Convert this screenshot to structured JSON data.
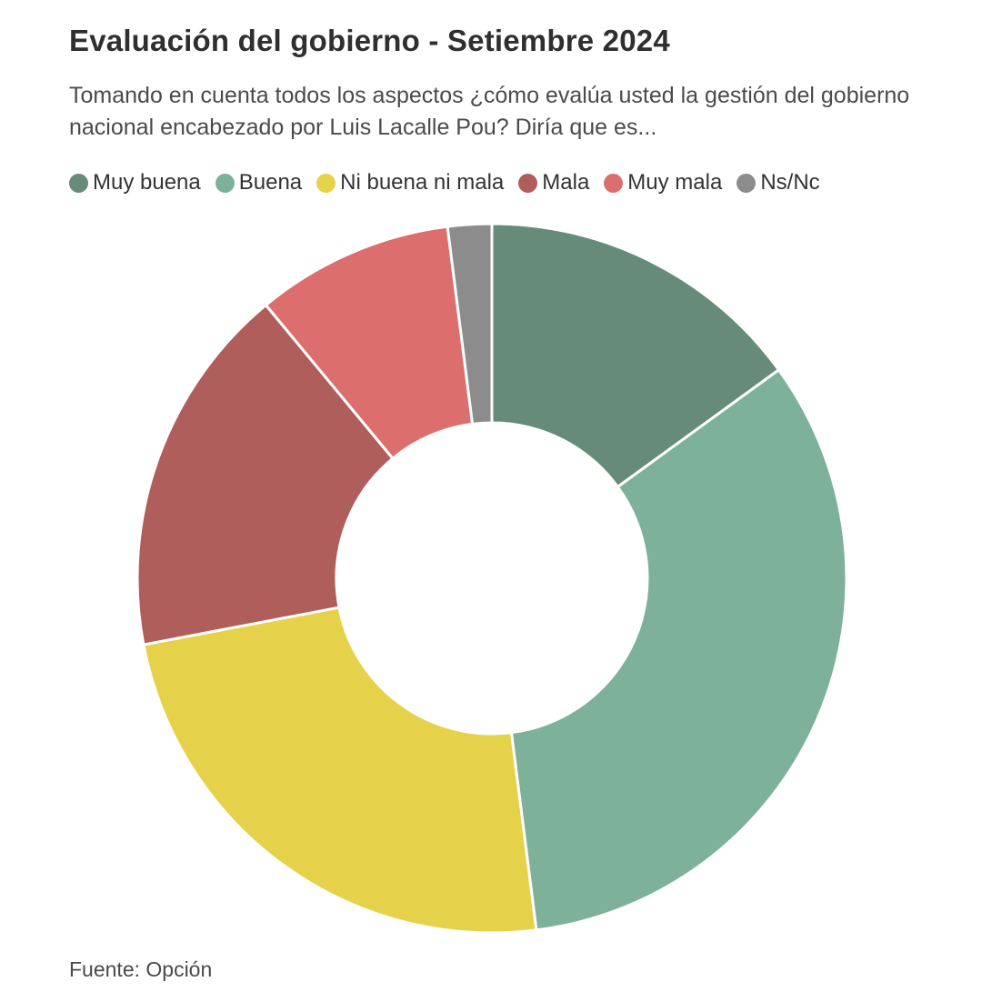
{
  "title": "Evaluación del gobierno - Setiembre 2024",
  "subtitle": "Tomando en cuenta todos los aspectos ¿cómo evalúa usted la gestión del gobierno nacional encabezado por Luis Lacalle Pou? Diría que es...",
  "source": "Fuente: Opción",
  "legend": [
    {
      "label": "Muy buena",
      "color": "#668b79"
    },
    {
      "label": "Buena",
      "color": "#7db19a"
    },
    {
      "label": "Ni buena ni mala",
      "color": "#e6d24a"
    },
    {
      "label": "Mala",
      "color": "#b05e5c"
    },
    {
      "label": "Muy mala",
      "color": "#dc6f6e"
    },
    {
      "label": "Ns/Nc",
      "color": "#8c8c8c"
    }
  ],
  "chart_data": {
    "type": "pie",
    "donut": true,
    "title": "Evaluación del gobierno - Setiembre 2024",
    "categories": [
      "Muy buena",
      "Buena",
      "Ni buena ni mala",
      "Mala",
      "Muy mala",
      "Ns/Nc"
    ],
    "values": [
      15,
      33,
      24,
      17,
      9,
      2
    ],
    "colors": [
      "#668b79",
      "#7db19a",
      "#e6d24a",
      "#b05e5c",
      "#dc6f6e",
      "#8c8c8c"
    ],
    "legend_position": "top-left"
  }
}
